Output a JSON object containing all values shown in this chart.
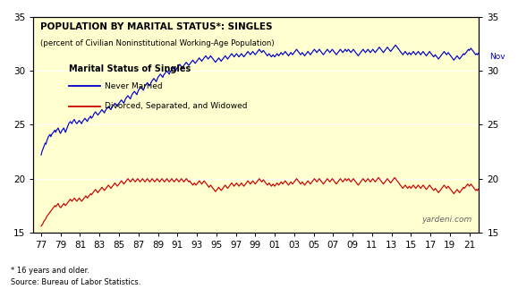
{
  "title": "POPULATION BY MARITAL STATUS*: SINGLES",
  "subtitle": "(percent of Civilian Noninstitutional Working-Age Population)",
  "background_color": "#FFFFD0",
  "outer_background": "#FFFFFF",
  "ylim": [
    15,
    35
  ],
  "yticks": [
    15,
    20,
    25,
    30,
    35
  ],
  "xtick_labels": [
    "77",
    "79",
    "81",
    "83",
    "85",
    "87",
    "89",
    "91",
    "93",
    "95",
    "97",
    "99",
    "01",
    "03",
    "05",
    "07",
    "09",
    "11",
    "13",
    "15",
    "17",
    "19",
    "21"
  ],
  "xtick_positions": [
    1977,
    1979,
    1981,
    1983,
    1985,
    1987,
    1989,
    1991,
    1993,
    1995,
    1997,
    1999,
    2001,
    2003,
    2005,
    2007,
    2009,
    2011,
    2013,
    2015,
    2017,
    2019,
    2021
  ],
  "legend_title": "Marital Status of Singles",
  "legend_entries": [
    "Never Married",
    "Divorced, Separated, and Widowed"
  ],
  "legend_colors": [
    "#0000CC",
    "#CC0000"
  ],
  "watermark": "yardeni.com",
  "footnote1": "* 16 years and older.",
  "footnote2": "Source: Bureau of Labor Statistics.",
  "nov_label": "Nov",
  "never_married": [
    22.2,
    22.5,
    22.7,
    22.9,
    23.1,
    23.3,
    23.2,
    23.5,
    23.7,
    23.9,
    24.0,
    24.1,
    23.9,
    24.1,
    24.2,
    24.3,
    24.4,
    24.5,
    24.3,
    24.5,
    24.6,
    24.7,
    24.5,
    24.3,
    24.2,
    24.4,
    24.5,
    24.6,
    24.7,
    24.5,
    24.3,
    24.5,
    24.7,
    24.9,
    25.1,
    25.2,
    25.3,
    25.2,
    25.1,
    25.3,
    25.4,
    25.5,
    25.3,
    25.2,
    25.1,
    25.2,
    25.3,
    25.4,
    25.3,
    25.2,
    25.1,
    25.3,
    25.4,
    25.5,
    25.6,
    25.5,
    25.4,
    25.3,
    25.5,
    25.6,
    25.7,
    25.8,
    25.6,
    25.7,
    25.8,
    26.0,
    26.1,
    26.2,
    26.1,
    26.0,
    25.9,
    26.0,
    26.1,
    26.2,
    26.3,
    26.4,
    26.3,
    26.2,
    26.1,
    26.3,
    26.4,
    26.5,
    26.6,
    26.7,
    26.6,
    26.5,
    26.4,
    26.6,
    26.7,
    26.8,
    26.9,
    27.0,
    26.9,
    26.8,
    26.7,
    26.9,
    27.0,
    27.1,
    27.2,
    27.3,
    27.2,
    27.1,
    27.0,
    27.2,
    27.4,
    27.5,
    27.6,
    27.7,
    27.6,
    27.5,
    27.4,
    27.6,
    27.8,
    27.9,
    28.0,
    28.1,
    28.0,
    27.9,
    27.8,
    28.0,
    28.2,
    28.3,
    28.4,
    28.5,
    28.4,
    28.3,
    28.2,
    28.4,
    28.6,
    28.7,
    28.8,
    28.9,
    28.8,
    28.7,
    28.6,
    28.8,
    29.0,
    29.1,
    29.2,
    29.3,
    29.2,
    29.1,
    29.0,
    29.2,
    29.4,
    29.5,
    29.6,
    29.7,
    29.6,
    29.5,
    29.4,
    29.6,
    29.7,
    29.8,
    29.9,
    30.0,
    29.9,
    29.8,
    29.7,
    29.9,
    30.0,
    30.1,
    30.2,
    30.3,
    30.2,
    30.1,
    30.0,
    30.2,
    30.3,
    30.4,
    30.5,
    30.6,
    30.5,
    30.4,
    30.3,
    30.4,
    30.5,
    30.6,
    30.7,
    30.8,
    30.7,
    30.6,
    30.5,
    30.6,
    30.7,
    30.8,
    30.9,
    31.0,
    30.9,
    30.8,
    30.7,
    30.8,
    30.9,
    31.0,
    31.1,
    31.2,
    31.1,
    31.0,
    30.9,
    31.0,
    31.1,
    31.2,
    31.3,
    31.4,
    31.3,
    31.2,
    31.1,
    31.2,
    31.3,
    31.4,
    31.3,
    31.2,
    31.1,
    31.0,
    30.9,
    30.8,
    30.9,
    31.0,
    31.1,
    31.2,
    31.1,
    31.0,
    30.9,
    31.0,
    31.1,
    31.2,
    31.3,
    31.4,
    31.3,
    31.2,
    31.1,
    31.2,
    31.3,
    31.4,
    31.5,
    31.6,
    31.5,
    31.4,
    31.3,
    31.4,
    31.5,
    31.6,
    31.5,
    31.4,
    31.3,
    31.4,
    31.5,
    31.6,
    31.5,
    31.4,
    31.3,
    31.4,
    31.5,
    31.6,
    31.7,
    31.8,
    31.7,
    31.6,
    31.5,
    31.6,
    31.7,
    31.8,
    31.7,
    31.6,
    31.5,
    31.6,
    31.7,
    31.8,
    31.9,
    32.0,
    31.9,
    31.8,
    31.7,
    31.8,
    31.9,
    31.8,
    31.7,
    31.6,
    31.5,
    31.4,
    31.5,
    31.6,
    31.5,
    31.4,
    31.3,
    31.4,
    31.5,
    31.4,
    31.3,
    31.4,
    31.5,
    31.6,
    31.5,
    31.4,
    31.5,
    31.6,
    31.7,
    31.6,
    31.5,
    31.6,
    31.7,
    31.8,
    31.7,
    31.6,
    31.5,
    31.4,
    31.5,
    31.6,
    31.7,
    31.6,
    31.5,
    31.6,
    31.7,
    31.8,
    31.9,
    32.0,
    31.9,
    31.8,
    31.7,
    31.6,
    31.5,
    31.6,
    31.7,
    31.6,
    31.5,
    31.4,
    31.5,
    31.6,
    31.7,
    31.8,
    31.7,
    31.6,
    31.5,
    31.6,
    31.7,
    31.8,
    31.9,
    32.0,
    31.9,
    31.8,
    31.7,
    31.8,
    31.9,
    32.0,
    31.9,
    31.8,
    31.7,
    31.6,
    31.5,
    31.6,
    31.7,
    31.8,
    31.9,
    32.0,
    31.9,
    31.8,
    31.7,
    31.8,
    31.9,
    32.0,
    31.9,
    31.8,
    31.7,
    31.6,
    31.5,
    31.6,
    31.7,
    31.8,
    31.9,
    32.0,
    31.9,
    31.8,
    31.7,
    31.8,
    31.9,
    32.0,
    31.9,
    31.8,
    31.9,
    32.0,
    31.9,
    31.8,
    31.7,
    31.8,
    31.9,
    32.0,
    31.9,
    31.8,
    31.7,
    31.6,
    31.5,
    31.4,
    31.5,
    31.6,
    31.7,
    31.8,
    31.9,
    32.0,
    31.9,
    31.8,
    31.7,
    31.8,
    31.9,
    32.0,
    31.9,
    31.8,
    31.7,
    31.8,
    31.9,
    32.0,
    31.9,
    31.8,
    31.7,
    31.8,
    31.9,
    32.0,
    32.1,
    32.2,
    32.1,
    32.0,
    31.9,
    31.8,
    31.7,
    31.8,
    31.9,
    32.0,
    32.1,
    32.2,
    32.1,
    32.0,
    31.9,
    31.8,
    31.9,
    32.0,
    32.1,
    32.2,
    32.3,
    32.4,
    32.3,
    32.2,
    32.1,
    32.0,
    31.9,
    31.8,
    31.7,
    31.6,
    31.5,
    31.6,
    31.7,
    31.8,
    31.7,
    31.6,
    31.5,
    31.6,
    31.7,
    31.6,
    31.5,
    31.6,
    31.7,
    31.8,
    31.7,
    31.6,
    31.5,
    31.6,
    31.7,
    31.8,
    31.7,
    31.6,
    31.5,
    31.6,
    31.7,
    31.8,
    31.7,
    31.6,
    31.5,
    31.4,
    31.5,
    31.6,
    31.7,
    31.8,
    31.7,
    31.6,
    31.5,
    31.4,
    31.3,
    31.4,
    31.5,
    31.4,
    31.3,
    31.2,
    31.1,
    31.2,
    31.3,
    31.4,
    31.5,
    31.6,
    31.7,
    31.8,
    31.7,
    31.6,
    31.5,
    31.6,
    31.7,
    31.6,
    31.5,
    31.4,
    31.3,
    31.2,
    31.1,
    31.0,
    31.1,
    31.2,
    31.3,
    31.4,
    31.3,
    31.2,
    31.1,
    31.2,
    31.3,
    31.4,
    31.5,
    31.6,
    31.5,
    31.6,
    31.7,
    31.8,
    31.9,
    32.0,
    31.9,
    32.0,
    32.1,
    32.0,
    31.9,
    31.8,
    31.7,
    31.6,
    31.5,
    31.6,
    31.5,
    31.6,
    31.7,
    31.8,
    31.7,
    31.6,
    31.5,
    31.4,
    31.3,
    31.2,
    31.1,
    31.0,
    31.1,
    31.2
  ],
  "divorced": [
    15.6,
    15.7,
    15.8,
    16.0,
    16.1,
    16.2,
    16.3,
    16.5,
    16.6,
    16.7,
    16.8,
    16.9,
    17.0,
    17.1,
    17.2,
    17.3,
    17.4,
    17.5,
    17.4,
    17.5,
    17.6,
    17.7,
    17.5,
    17.4,
    17.3,
    17.4,
    17.5,
    17.6,
    17.7,
    17.6,
    17.5,
    17.6,
    17.7,
    17.8,
    17.9,
    18.0,
    18.1,
    18.0,
    17.9,
    18.0,
    18.1,
    18.2,
    18.1,
    18.0,
    17.9,
    18.0,
    18.1,
    18.2,
    18.1,
    18.0,
    17.9,
    18.0,
    18.1,
    18.2,
    18.3,
    18.4,
    18.3,
    18.2,
    18.3,
    18.4,
    18.5,
    18.6,
    18.5,
    18.6,
    18.7,
    18.8,
    18.9,
    19.0,
    18.9,
    18.8,
    18.7,
    18.8,
    18.9,
    19.0,
    19.1,
    19.2,
    19.1,
    19.0,
    18.9,
    19.0,
    19.1,
    19.2,
    19.3,
    19.4,
    19.3,
    19.2,
    19.1,
    19.2,
    19.3,
    19.4,
    19.5,
    19.6,
    19.5,
    19.4,
    19.3,
    19.4,
    19.5,
    19.6,
    19.7,
    19.8,
    19.7,
    19.6,
    19.5,
    19.6,
    19.7,
    19.8,
    19.9,
    20.0,
    19.9,
    19.8,
    19.7,
    19.8,
    19.9,
    20.0,
    19.9,
    19.8,
    19.7,
    19.8,
    19.9,
    20.0,
    19.9,
    19.8,
    19.7,
    19.8,
    19.9,
    20.0,
    19.9,
    19.8,
    19.7,
    19.8,
    19.9,
    20.0,
    19.9,
    19.8,
    19.7,
    19.8,
    19.9,
    20.0,
    19.9,
    19.8,
    19.7,
    19.8,
    19.9,
    20.0,
    19.9,
    19.8,
    19.7,
    19.8,
    19.9,
    20.0,
    19.9,
    19.8,
    19.7,
    19.8,
    19.9,
    20.0,
    19.9,
    19.8,
    19.7,
    19.8,
    19.9,
    20.0,
    19.9,
    19.8,
    19.7,
    19.8,
    19.9,
    20.0,
    19.9,
    19.8,
    19.7,
    19.8,
    19.9,
    20.0,
    19.9,
    19.8,
    19.7,
    19.8,
    19.9,
    20.0,
    19.9,
    19.8,
    19.7,
    19.8,
    19.7,
    19.6,
    19.5,
    19.4,
    19.5,
    19.6,
    19.5,
    19.4,
    19.5,
    19.6,
    19.7,
    19.8,
    19.7,
    19.6,
    19.5,
    19.6,
    19.7,
    19.8,
    19.7,
    19.6,
    19.5,
    19.4,
    19.3,
    19.2,
    19.3,
    19.4,
    19.3,
    19.2,
    19.1,
    19.0,
    18.9,
    18.8,
    18.9,
    19.0,
    19.1,
    19.2,
    19.1,
    19.0,
    18.9,
    19.0,
    19.1,
    19.2,
    19.3,
    19.4,
    19.3,
    19.2,
    19.1,
    19.2,
    19.3,
    19.4,
    19.5,
    19.6,
    19.5,
    19.4,
    19.3,
    19.4,
    19.5,
    19.6,
    19.5,
    19.4,
    19.3,
    19.4,
    19.5,
    19.6,
    19.5,
    19.4,
    19.3,
    19.4,
    19.5,
    19.6,
    19.7,
    19.8,
    19.7,
    19.6,
    19.5,
    19.6,
    19.7,
    19.8,
    19.7,
    19.6,
    19.5,
    19.6,
    19.7,
    19.8,
    19.9,
    20.0,
    19.9,
    19.8,
    19.7,
    19.8,
    19.9,
    19.8,
    19.7,
    19.6,
    19.5,
    19.4,
    19.5,
    19.6,
    19.5,
    19.4,
    19.3,
    19.4,
    19.5,
    19.4,
    19.3,
    19.4,
    19.5,
    19.6,
    19.5,
    19.4,
    19.5,
    19.6,
    19.7,
    19.6,
    19.5,
    19.6,
    19.7,
    19.8,
    19.7,
    19.6,
    19.5,
    19.4,
    19.5,
    19.6,
    19.7,
    19.6,
    19.5,
    19.6,
    19.7,
    19.8,
    19.9,
    20.0,
    19.9,
    19.8,
    19.7,
    19.6,
    19.5,
    19.6,
    19.7,
    19.6,
    19.5,
    19.4,
    19.5,
    19.6,
    19.7,
    19.8,
    19.7,
    19.6,
    19.5,
    19.6,
    19.7,
    19.8,
    19.9,
    20.0,
    19.9,
    19.8,
    19.7,
    19.8,
    19.9,
    20.0,
    19.9,
    19.8,
    19.7,
    19.6,
    19.5,
    19.6,
    19.7,
    19.8,
    19.9,
    20.0,
    19.9,
    19.8,
    19.7,
    19.8,
    19.9,
    20.0,
    19.9,
    19.8,
    19.7,
    19.6,
    19.5,
    19.6,
    19.7,
    19.8,
    19.9,
    20.0,
    19.9,
    19.8,
    19.7,
    19.8,
    19.9,
    20.0,
    19.9,
    19.8,
    19.9,
    20.0,
    19.9,
    19.8,
    19.7,
    19.8,
    19.9,
    20.0,
    19.9,
    19.8,
    19.7,
    19.6,
    19.5,
    19.4,
    19.5,
    19.6,
    19.7,
    19.8,
    19.9,
    20.0,
    19.9,
    19.8,
    19.7,
    19.8,
    19.9,
    20.0,
    19.9,
    19.8,
    19.7,
    19.8,
    19.9,
    20.0,
    19.9,
    19.8,
    19.7,
    19.8,
    19.9,
    20.0,
    20.1,
    20.0,
    19.9,
    19.8,
    19.7,
    19.6,
    19.5,
    19.6,
    19.7,
    19.8,
    19.9,
    20.0,
    19.9,
    19.8,
    19.7,
    19.6,
    19.7,
    19.8,
    19.9,
    20.0,
    20.1,
    20.0,
    19.9,
    19.8,
    19.7,
    19.6,
    19.5,
    19.4,
    19.3,
    19.2,
    19.1,
    19.2,
    19.3,
    19.4,
    19.3,
    19.2,
    19.1,
    19.2,
    19.3,
    19.2,
    19.1,
    19.2,
    19.3,
    19.4,
    19.3,
    19.2,
    19.1,
    19.2,
    19.3,
    19.4,
    19.3,
    19.2,
    19.1,
    19.2,
    19.3,
    19.4,
    19.3,
    19.2,
    19.1,
    19.0,
    19.1,
    19.2,
    19.3,
    19.4,
    19.3,
    19.2,
    19.1,
    19.0,
    18.9,
    19.0,
    19.1,
    19.0,
    18.9,
    18.8,
    18.7,
    18.8,
    18.9,
    19.0,
    19.1,
    19.2,
    19.3,
    19.4,
    19.3,
    19.2,
    19.1,
    19.2,
    19.3,
    19.2,
    19.1,
    19.0,
    18.9,
    18.8,
    18.7,
    18.6,
    18.7,
    18.8,
    18.9,
    19.0,
    18.9,
    18.8,
    18.7,
    18.8,
    18.9,
    19.0,
    19.1,
    19.2,
    19.1,
    19.2,
    19.3,
    19.4,
    19.5,
    19.4,
    19.3,
    19.4,
    19.5,
    19.4,
    19.3,
    19.2,
    19.1,
    19.0,
    18.9,
    19.0,
    18.9,
    19.0,
    19.1,
    19.2,
    19.1,
    19.0,
    18.9,
    18.8,
    18.7,
    18.6,
    18.5,
    18.4,
    18.5,
    18.6
  ]
}
